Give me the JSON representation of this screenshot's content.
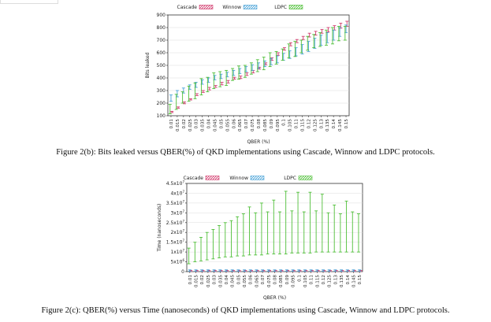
{
  "colors": {
    "cascade": "#d23c6e",
    "winnow": "#4aa3d8",
    "ldpc": "#4fbf38",
    "axis": "#333333",
    "grid": "#dddddd"
  },
  "captions": {
    "fig_b": "Figure 2(b): Bits leaked versus QBER(%) of QKD implementations using Cascade, Winnow and LDPC protocols.",
    "fig_c": "Figure 2(c): QBER(%) versus Time (nanoseconds) of QKD implementations using Cascade, Winnow and LDPC protocols."
  },
  "chart_data": [
    {
      "type": "line",
      "xlabel": "QBER (%)",
      "ylabel": "Bits leaked",
      "ylim": [
        100,
        900
      ],
      "yticks": [
        "100",
        "200",
        "300",
        "400",
        "500",
        "600",
        "700",
        "800",
        "900"
      ],
      "x": [
        "0.01",
        "0.015",
        "0.02",
        "0.025",
        "0.03",
        "0.035",
        "0.04",
        "0.045",
        "0.05",
        "0.055",
        "0.06",
        "0.065",
        "0.07",
        "0.075",
        "0.08",
        "0.085",
        "0.09",
        "0.095",
        "0.1",
        "0.105",
        "0.11",
        "0.115",
        "0.12",
        "0.125",
        "0.13",
        "0.135",
        "0.14",
        "0.145",
        "0.15"
      ],
      "legend_position": "top",
      "grid": true,
      "series": [
        {
          "name": "Cascade",
          "low": [
            125,
            160,
            195,
            225,
            260,
            285,
            305,
            325,
            345,
            360,
            390,
            395,
            420,
            440,
            470,
            505,
            540,
            580,
            620,
            655,
            680,
            705,
            725,
            740,
            755,
            765,
            780,
            795,
            810
          ],
          "high": [
            135,
            170,
            210,
            235,
            275,
            300,
            325,
            340,
            365,
            380,
            405,
            415,
            440,
            460,
            485,
            520,
            560,
            600,
            640,
            680,
            705,
            730,
            755,
            770,
            785,
            800,
            815,
            835,
            850
          ]
        },
        {
          "name": "Winnow",
          "low": [
            215,
            250,
            280,
            310,
            325,
            350,
            365,
            385,
            395,
            410,
            420,
            435,
            450,
            460,
            475,
            490,
            505,
            520,
            540,
            555,
            575,
            590,
            610,
            635,
            660,
            680,
            700,
            730,
            760
          ],
          "high": [
            265,
            300,
            320,
            345,
            365,
            385,
            400,
            420,
            430,
            445,
            460,
            475,
            490,
            505,
            520,
            535,
            555,
            575,
            595,
            615,
            640,
            665,
            690,
            715,
            740,
            760,
            780,
            800,
            820
          ]
        },
        {
          "name": "LDPC",
          "low": [
            115,
            150,
            200,
            215,
            235,
            265,
            290,
            315,
            330,
            340,
            380,
            390,
            405,
            430,
            450,
            465,
            490,
            510,
            540,
            560,
            570,
            600,
            620,
            640,
            650,
            660,
            670,
            695,
            700
          ],
          "high": [
            190,
            270,
            290,
            335,
            360,
            395,
            405,
            440,
            450,
            460,
            475,
            495,
            500,
            520,
            545,
            565,
            600,
            610,
            630,
            670,
            690,
            700,
            730,
            745,
            760,
            780,
            800,
            810,
            810
          ]
        }
      ]
    },
    {
      "type": "line",
      "xlabel": "QBER (%)",
      "ylabel": "Time (nanoseconds)",
      "ylim": [
        0,
        45000000
      ],
      "yticks": [
        "0",
        "5x10^6",
        "1x10^7",
        "1.5x10^7",
        "2x10^7",
        "2.5x10^7",
        "3x10^7",
        "3.5x10^7",
        "4x10^7",
        "4.5x10^7"
      ],
      "x": [
        "0.01",
        "0.015",
        "0.02",
        "0.025",
        "0.03",
        "0.035",
        "0.04",
        "0.045",
        "0.05",
        "0.055",
        "0.06",
        "0.065",
        "0.07",
        "0.075",
        "0.08",
        "0.085",
        "0.09",
        "0.095",
        "0.1",
        "0.105",
        "0.11",
        "0.115",
        "0.12",
        "0.125",
        "0.13",
        "0.135",
        "0.14",
        "0.145",
        "0.15"
      ],
      "legend_position": "top",
      "grid": true,
      "series": [
        {
          "name": "Cascade",
          "low": [
            100000,
            100000,
            100000,
            100000,
            100000,
            100000,
            100000,
            100000,
            100000,
            100000,
            100000,
            100000,
            100000,
            100000,
            100000,
            100000,
            100000,
            100000,
            100000,
            100000,
            100000,
            100000,
            100000,
            100000,
            100000,
            100000,
            100000,
            100000,
            100000
          ],
          "high": [
            600000,
            600000,
            600000,
            600000,
            600000,
            600000,
            600000,
            600000,
            600000,
            600000,
            600000,
            600000,
            600000,
            600000,
            600000,
            600000,
            600000,
            600000,
            600000,
            600000,
            600000,
            600000,
            600000,
            600000,
            600000,
            600000,
            600000,
            600000,
            600000
          ]
        },
        {
          "name": "Winnow",
          "low": [
            200000,
            200000,
            200000,
            200000,
            200000,
            200000,
            200000,
            200000,
            200000,
            200000,
            200000,
            200000,
            200000,
            200000,
            200000,
            200000,
            200000,
            200000,
            200000,
            200000,
            200000,
            200000,
            200000,
            200000,
            200000,
            200000,
            200000,
            200000,
            200000
          ],
          "high": [
            900000,
            900000,
            900000,
            900000,
            900000,
            900000,
            900000,
            900000,
            900000,
            900000,
            900000,
            900000,
            900000,
            900000,
            900000,
            900000,
            900000,
            900000,
            900000,
            900000,
            900000,
            900000,
            900000,
            900000,
            900000,
            900000,
            900000,
            900000,
            900000
          ]
        },
        {
          "name": "LDPC",
          "low": [
            4000000,
            5000000,
            5500000,
            6000000,
            6500000,
            7000000,
            7500000,
            7500000,
            8000000,
            8000000,
            8500000,
            8500000,
            8500000,
            9000000,
            9000000,
            9000000,
            9000000,
            9500000,
            9500000,
            9500000,
            9500000,
            10000000,
            10000000,
            10000000,
            10000000,
            10000000,
            10000000,
            10000000,
            10000000
          ],
          "high": [
            12000000,
            15000000,
            17500000,
            20000000,
            21500000,
            23500000,
            25000000,
            26000000,
            28000000,
            29500000,
            33000000,
            30000000,
            35000000,
            30500000,
            36500000,
            30500000,
            41000000,
            31000000,
            40500000,
            30500000,
            40500000,
            31000000,
            39500000,
            30000000,
            34000000,
            29500000,
            36000000,
            30500000,
            29500000
          ]
        }
      ]
    }
  ]
}
